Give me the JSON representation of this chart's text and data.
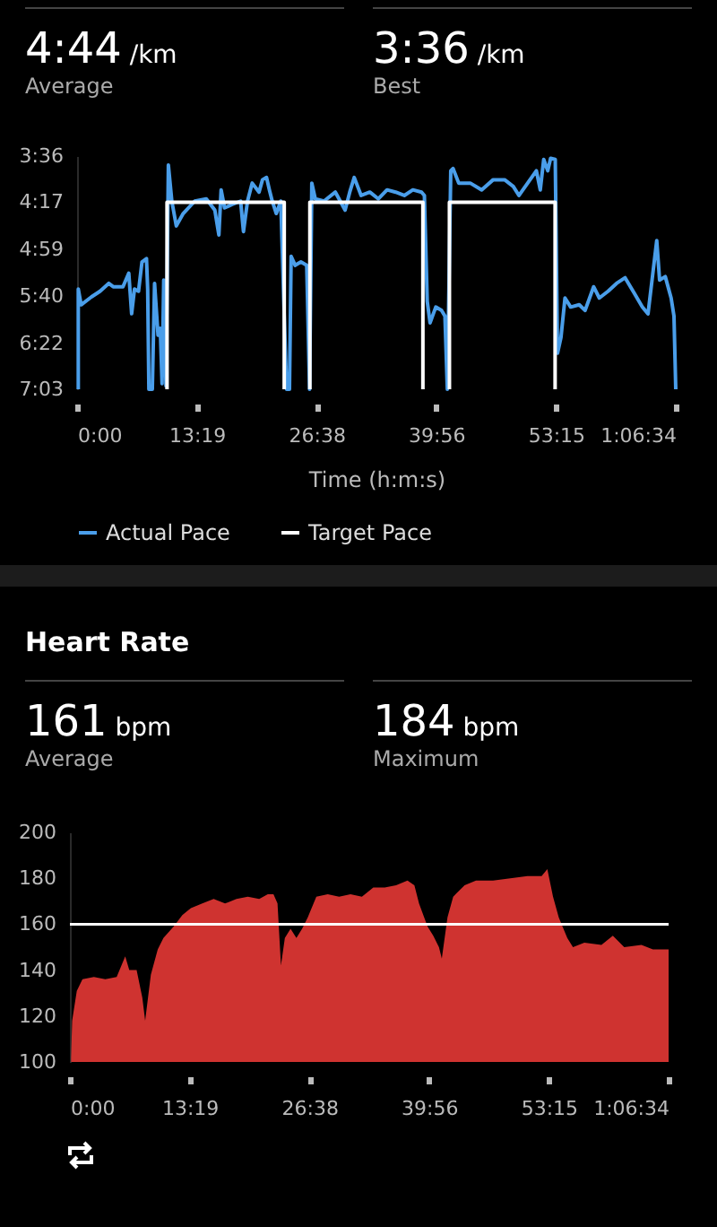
{
  "chart_data": [
    {
      "type": "line",
      "annotations": [
        "4:44 /km",
        "Average",
        "3:36 /km",
        "Best"
      ],
      "xlabel": "Time (h:m:s)",
      "legend": "bottom",
      "xlim": [
        0,
        3994
      ],
      "xticks": [
        {
          "value": 0,
          "label": "0:00"
        },
        {
          "value": 799,
          "label": "13:19"
        },
        {
          "value": 1598,
          "label": "26:38"
        },
        {
          "value": 2396,
          "label": "39:56"
        },
        {
          "value": 3195,
          "label": "53:15"
        },
        {
          "value": 3994,
          "label": "1:06:34"
        }
      ],
      "ylim": [
        423,
        216
      ],
      "yticks": [
        {
          "value": 216,
          "label": "3:36"
        },
        {
          "value": 257,
          "label": "4:17"
        },
        {
          "value": 299,
          "label": "4:59"
        },
        {
          "value": 340,
          "label": "5:40"
        },
        {
          "value": 382,
          "label": "6:22"
        },
        {
          "value": 423,
          "label": "7:03"
        }
      ],
      "series": [
        {
          "name": "Actual Pace",
          "color": "#4a9eea",
          "x": [
            8,
            8,
            27,
            96,
            153,
            211,
            241,
            306,
            345,
            364,
            383,
            410,
            433,
            463,
            471,
            479,
            502,
            517,
            540,
            555,
            567,
            578,
            593,
            609,
            632,
            662,
            708,
            785,
            862,
            919,
            946,
            961,
            984,
            1034,
            1091,
            1110,
            1137,
            1168,
            1214,
            1237,
            1264,
            1283,
            1302,
            1329,
            1359,
            1382,
            1398,
            1417,
            1428,
            1455,
            1493,
            1532,
            1551,
            1566,
            1589,
            1647,
            1723,
            1788,
            1819,
            1849,
            1895,
            1953,
            2010,
            2068,
            2125,
            2183,
            2240,
            2298,
            2317,
            2336,
            2355,
            2393,
            2431,
            2454,
            2470,
            2493,
            2508,
            2546,
            2623,
            2699,
            2776,
            2852,
            2910,
            2948,
            3006,
            3064,
            3090,
            3113,
            3140,
            3159,
            3190,
            3205,
            3228,
            3255,
            3293,
            3350,
            3389,
            3446,
            3484,
            3542,
            3599,
            3656,
            3714,
            3771,
            3809,
            3867,
            3886,
            3924,
            3963,
            3982,
            3994
          ],
          "values": [
            423,
            334,
            348,
            341,
            336,
            329,
            332,
            332,
            320,
            356,
            334,
            336,
            310,
            307,
            334,
            423,
            423,
            329,
            375,
            369,
            418,
            326,
            420,
            224,
            256,
            278,
            267,
            256,
            254,
            264,
            286,
            246,
            262,
            259,
            256,
            283,
            256,
            240,
            248,
            237,
            235,
            246,
            256,
            267,
            256,
            358,
            423,
            423,
            305,
            313,
            310,
            313,
            423,
            240,
            254,
            256,
            248,
            264,
            248,
            235,
            251,
            248,
            254,
            246,
            248,
            251,
            246,
            248,
            251,
            345,
            364,
            350,
            353,
            358,
            423,
            229,
            227,
            240,
            240,
            246,
            237,
            237,
            243,
            251,
            240,
            229,
            246,
            219,
            229,
            218,
            219,
            391,
            377,
            342,
            350,
            348,
            353,
            332,
            342,
            336,
            329,
            324,
            337,
            350,
            356,
            291,
            326,
            323,
            342,
            358,
            423
          ]
        },
        {
          "name": "Target Pace",
          "color": "#ffffff",
          "x": [
            600,
            600,
            1382,
            1382,
            1470,
            1553,
            1553,
            2307,
            2307,
            2400,
            2484,
            2484,
            3189,
            3189
          ],
          "values": [
            423,
            257,
            257,
            423,
            null,
            423,
            257,
            257,
            423,
            null,
            423,
            257,
            257,
            423
          ]
        }
      ]
    },
    {
      "type": "area",
      "title": "Heart Rate",
      "annotations": [
        "161 bpm",
        "Average",
        "184 bpm",
        "Maximum"
      ],
      "xlim": [
        0,
        3994
      ],
      "xticks": [
        {
          "value": 0,
          "label": "0:00"
        },
        {
          "value": 799,
          "label": "13:19"
        },
        {
          "value": 1598,
          "label": "26:38"
        },
        {
          "value": 2396,
          "label": "39:56"
        },
        {
          "value": 3195,
          "label": "53:15"
        },
        {
          "value": 3994,
          "label": "1:06:34"
        }
      ],
      "ylim": [
        100,
        200
      ],
      "yticks": [
        100,
        120,
        140,
        160,
        180,
        200
      ],
      "ref_lines": [
        {
          "axis": "y",
          "value": 160,
          "color": "#ffffff"
        }
      ],
      "series": [
        {
          "color": "#e53935",
          "x": [
            8,
            15,
            46,
            84,
            160,
            236,
            312,
            369,
            396,
            445,
            483,
            502,
            540,
            586,
            624,
            692,
            750,
            807,
            883,
            959,
            1035,
            1111,
            1187,
            1263,
            1320,
            1358,
            1385,
            1408,
            1434,
            1472,
            1511,
            1549,
            1587,
            1644,
            1720,
            1796,
            1872,
            1948,
            2024,
            2100,
            2176,
            2252,
            2298,
            2329,
            2386,
            2424,
            2462,
            2481,
            2519,
            2557,
            2633,
            2709,
            2823,
            2938,
            3052,
            3147,
            3185,
            3223,
            3261,
            3318,
            3356,
            3432,
            3546,
            3622,
            3698,
            3813,
            3889,
            3965,
            3994
          ],
          "values": [
            102,
            118,
            131,
            136,
            137,
            136,
            137,
            146,
            140,
            140,
            128,
            118,
            138,
            149,
            154,
            159,
            164,
            167,
            169,
            171,
            169,
            171,
            172,
            171,
            173,
            173,
            169,
            142,
            154,
            158,
            154,
            158,
            163,
            172,
            173,
            172,
            173,
            172,
            176,
            176,
            177,
            179,
            177,
            169,
            159,
            155,
            150,
            145,
            163,
            172,
            177,
            179,
            179,
            180,
            181,
            181,
            184,
            172,
            163,
            154,
            150,
            152,
            151,
            155,
            150,
            151,
            149,
            149,
            149
          ]
        }
      ]
    }
  ]
}
